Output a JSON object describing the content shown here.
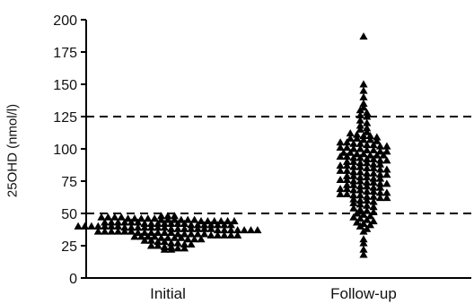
{
  "chart_data": {
    "type": "scatter",
    "subtype": "beeswarm dot plot",
    "ylabel": "25OHD (nmol/l)",
    "xlabel": "",
    "categories": [
      "Initial",
      "Follow-up"
    ],
    "ylim": [
      0,
      200
    ],
    "yticks": [
      0,
      25,
      50,
      75,
      100,
      125,
      150,
      175,
      200
    ],
    "reference_lines": [
      50,
      125
    ],
    "marker": "triangle",
    "marker_color": "#000000",
    "series": [
      {
        "category": "Initial",
        "values": [
          48,
          48,
          48,
          47,
          47,
          47,
          47,
          46,
          46,
          46,
          46,
          46,
          45,
          45,
          45,
          45,
          45,
          45,
          44,
          44,
          44,
          44,
          44,
          44,
          43,
          43,
          43,
          43,
          43,
          43,
          42,
          42,
          42,
          42,
          42,
          42,
          42,
          41,
          41,
          41,
          41,
          41,
          41,
          41,
          40,
          40,
          40,
          40,
          40,
          40,
          40,
          39,
          39,
          39,
          39,
          39,
          39,
          39,
          38,
          38,
          38,
          38,
          38,
          38,
          38,
          37,
          37,
          37,
          37,
          37,
          37,
          37,
          36,
          36,
          36,
          36,
          36,
          36,
          35,
          35,
          35,
          35,
          35,
          35,
          34,
          34,
          34,
          34,
          34,
          33,
          33,
          33,
          33,
          33,
          32,
          32,
          32,
          32,
          31,
          31,
          31,
          31,
          30,
          30,
          30,
          29,
          29,
          28,
          28,
          27,
          27,
          26,
          26,
          25,
          25,
          24,
          24,
          23,
          23,
          22,
          22
        ]
      },
      {
        "category": "Follow-up",
        "values": [
          187,
          150,
          145,
          140,
          135,
          132,
          130,
          128,
          126,
          125,
          122,
          120,
          118,
          116,
          115,
          113,
          112,
          111,
          110,
          110,
          109,
          108,
          108,
          107,
          107,
          106,
          105,
          105,
          104,
          104,
          103,
          103,
          102,
          102,
          101,
          101,
          100,
          100,
          99,
          99,
          98,
          98,
          97,
          97,
          96,
          96,
          95,
          95,
          95,
          94,
          94,
          93,
          93,
          92,
          92,
          91,
          91,
          90,
          90,
          89,
          89,
          88,
          88,
          87,
          87,
          86,
          86,
          85,
          85,
          84,
          84,
          83,
          83,
          82,
          82,
          81,
          81,
          80,
          80,
          79,
          79,
          78,
          78,
          77,
          77,
          76,
          76,
          75,
          75,
          74,
          74,
          73,
          73,
          72,
          72,
          71,
          71,
          70,
          70,
          69,
          69,
          68,
          68,
          67,
          67,
          66,
          66,
          65,
          65,
          64,
          64,
          63,
          63,
          62,
          62,
          61,
          60,
          60,
          59,
          58,
          57,
          56,
          55,
          54,
          53,
          52,
          51,
          50,
          49,
          48,
          47,
          46,
          45,
          44,
          43,
          42,
          41,
          40,
          38,
          36,
          30,
          27,
          22,
          18
        ]
      }
    ]
  }
}
